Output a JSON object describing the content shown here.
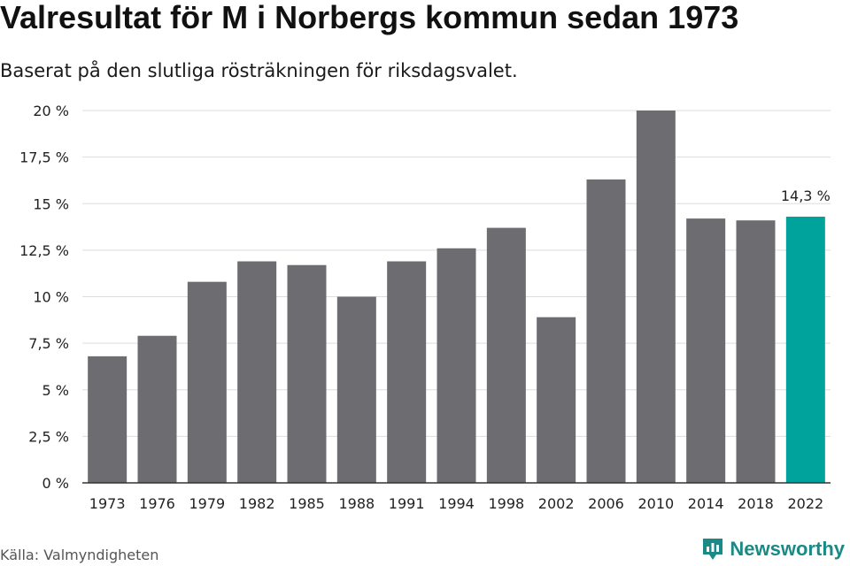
{
  "title": "Valresultat för M i Norbergs kommun sedan 1973",
  "subtitle": "Baserat på den slutliga rösträkningen för riksdagsvalet.",
  "source": "Källa: Valmyndigheten",
  "brand": {
    "name": "Newsworthy",
    "icon": "newsworthy-logo-icon",
    "color": "#1a8a86"
  },
  "colors": {
    "bar": "#6d6c71",
    "highlight": "#00a39b",
    "grid": "#dddddd",
    "axis": "#333333"
  },
  "chart_data": {
    "type": "bar",
    "categories": [
      "1973",
      "1976",
      "1979",
      "1982",
      "1985",
      "1988",
      "1991",
      "1994",
      "1998",
      "2002",
      "2006",
      "2010",
      "2014",
      "2018",
      "2022"
    ],
    "values": [
      6.8,
      7.9,
      10.8,
      11.9,
      11.7,
      10.0,
      11.9,
      12.6,
      13.7,
      8.9,
      16.3,
      20.0,
      14.2,
      14.1,
      14.3
    ],
    "ylim": [
      0,
      20
    ],
    "yticks": [
      0,
      2.5,
      5,
      7.5,
      10,
      12.5,
      15,
      17.5,
      20
    ],
    "ytick_labels": [
      "0 %",
      "2,5 %",
      "5 %",
      "7,5 %",
      "10 %",
      "12,5 %",
      "15 %",
      "17,5 %",
      "20 %"
    ],
    "grid": true,
    "highlight_index": 14,
    "annotation": {
      "category": "2022",
      "text": "14,3 %"
    }
  }
}
